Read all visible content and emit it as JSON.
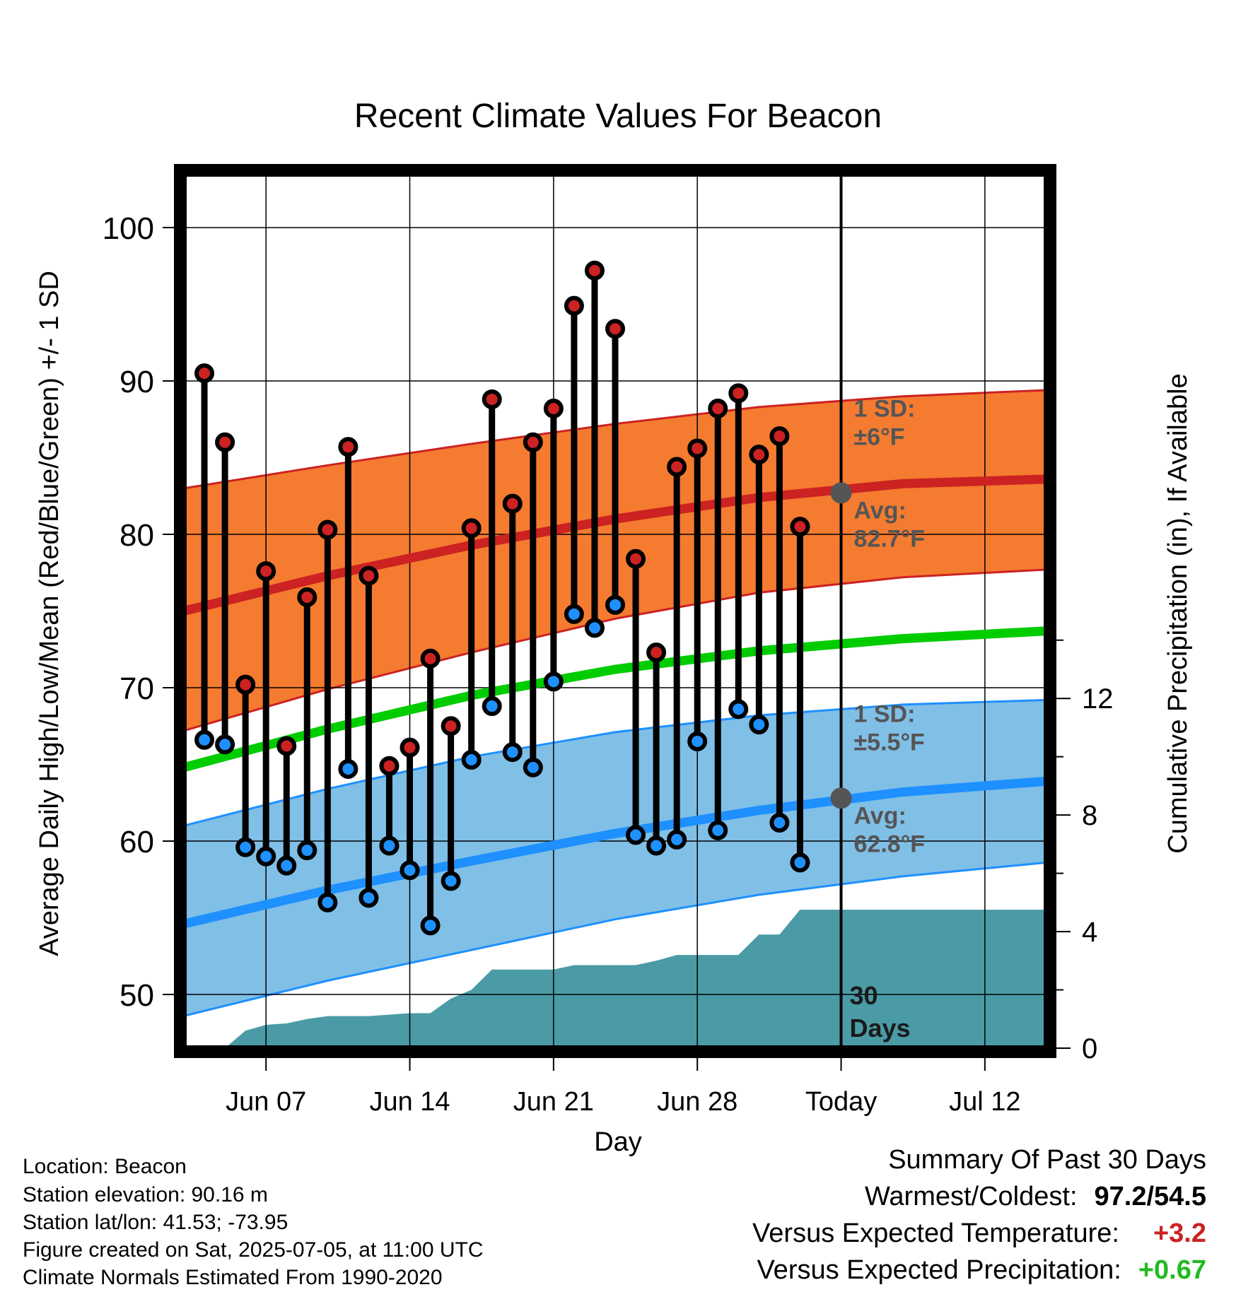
{
  "chart_data": {
    "type": "line",
    "title": "Recent Climate Values For Beacon",
    "xlabel": "Day",
    "ylabel": "Average Daily High/Low/Mean (Red/Blue/Green) +/- 1 SD",
    "y2label": "Cumulative Precipitation (in), If Available",
    "xlim": [
      "2025-06-03",
      "2025-07-15"
    ],
    "ylim": [
      46.5,
      103.5
    ],
    "y2lim": [
      0,
      30
    ],
    "x_ticks": [
      {
        "date": "2025-06-07",
        "label": "Jun 07"
      },
      {
        "date": "2025-06-14",
        "label": "Jun 14"
      },
      {
        "date": "2025-06-21",
        "label": "Jun 21"
      },
      {
        "date": "2025-06-28",
        "label": "Jun 28"
      },
      {
        "date": "2025-07-05",
        "label": "Today"
      },
      {
        "date": "2025-07-12",
        "label": "Jul 12"
      }
    ],
    "y_ticks": [
      50,
      60,
      70,
      80,
      90,
      100
    ],
    "y2_ticks": [
      0,
      4,
      8,
      12
    ],
    "grid": true,
    "today_marker": {
      "date": "2025-07-05",
      "label_line1": "30",
      "label_line2": "Days"
    },
    "normals": {
      "dates": [
        "2025-06-03",
        "2025-06-10",
        "2025-06-17",
        "2025-06-24",
        "2025-07-01",
        "2025-07-08",
        "2025-07-15"
      ],
      "avg_high": [
        75.0,
        77.3,
        79.3,
        81.0,
        82.4,
        83.3,
        83.6
      ],
      "high_sd_upper": [
        83.0,
        84.5,
        85.9,
        87.2,
        88.3,
        89.0,
        89.4
      ],
      "high_sd_lower": [
        67.2,
        69.9,
        72.3,
        74.5,
        76.2,
        77.2,
        77.7
      ],
      "avg_mean": [
        64.8,
        67.3,
        69.5,
        71.2,
        72.4,
        73.2,
        73.7
      ],
      "avg_low": [
        54.6,
        56.8,
        58.7,
        60.5,
        62.0,
        63.2,
        63.9
      ],
      "low_sd_upper": [
        61.0,
        63.4,
        65.5,
        67.1,
        68.2,
        68.9,
        69.2
      ],
      "low_sd_lower": [
        48.6,
        50.9,
        52.9,
        54.9,
        56.5,
        57.7,
        58.6
      ]
    },
    "high_annotation": {
      "sd_label": "1 SD:",
      "sd_value": "±6°F",
      "avg_label": "Avg:",
      "avg_value": "82.7°F",
      "avg": 82.7
    },
    "low_annotation": {
      "sd_label": "1 SD:",
      "sd_value": "±5.5°F",
      "avg_label": "Avg:",
      "avg_value": "62.8°F",
      "avg": 62.8
    },
    "series": [
      {
        "name": "High",
        "color": "#cc2222",
        "values": [
          90.5,
          86.0,
          70.2,
          77.6,
          66.2,
          75.9,
          80.3,
          85.7,
          77.3,
          64.9,
          66.1,
          71.9,
          67.5,
          80.4,
          88.8,
          82.0,
          86.0,
          88.2,
          94.9,
          97.2,
          93.4,
          78.4,
          72.3,
          84.4,
          85.6,
          88.2,
          89.2,
          85.2,
          86.4,
          80.5
        ]
      },
      {
        "name": "Low",
        "color": "#1e90ff",
        "values": [
          66.6,
          66.3,
          59.6,
          59.0,
          58.4,
          59.4,
          56.0,
          64.7,
          56.3,
          59.7,
          58.1,
          54.5,
          57.4,
          65.3,
          68.8,
          65.8,
          64.8,
          70.4,
          74.8,
          73.9,
          75.4,
          60.4,
          59.7,
          60.1,
          66.5,
          60.7,
          68.6,
          67.6,
          61.2,
          58.6
        ]
      }
    ],
    "days": [
      "2025-06-04",
      "2025-06-05",
      "2025-06-06",
      "2025-06-07",
      "2025-06-08",
      "2025-06-09",
      "2025-06-10",
      "2025-06-11",
      "2025-06-12",
      "2025-06-13",
      "2025-06-14",
      "2025-06-15",
      "2025-06-16",
      "2025-06-17",
      "2025-06-18",
      "2025-06-19",
      "2025-06-20",
      "2025-06-21",
      "2025-06-22",
      "2025-06-23",
      "2025-06-24",
      "2025-06-25",
      "2025-06-26",
      "2025-06-27",
      "2025-06-28",
      "2025-06-29",
      "2025-06-30",
      "2025-07-01",
      "2025-07-02",
      "2025-07-03"
    ],
    "precip_cumulative": {
      "dates": [
        "2025-06-03",
        "2025-06-04",
        "2025-06-05",
        "2025-06-06",
        "2025-06-07",
        "2025-06-08",
        "2025-06-09",
        "2025-06-10",
        "2025-06-11",
        "2025-06-12",
        "2025-06-13",
        "2025-06-14",
        "2025-06-15",
        "2025-06-16",
        "2025-06-17",
        "2025-06-18",
        "2025-06-19",
        "2025-06-20",
        "2025-06-21",
        "2025-06-22",
        "2025-06-23",
        "2025-06-24",
        "2025-06-25",
        "2025-06-26",
        "2025-06-27",
        "2025-06-28",
        "2025-06-29",
        "2025-06-30",
        "2025-07-01",
        "2025-07-02",
        "2025-07-03",
        "2025-07-04",
        "2025-07-05",
        "2025-07-15"
      ],
      "values": [
        0.0,
        0.0,
        0.0,
        0.6,
        0.8,
        0.85,
        1.0,
        1.1,
        1.1,
        1.1,
        1.15,
        1.2,
        1.2,
        1.7,
        2.0,
        2.7,
        2.7,
        2.7,
        2.7,
        2.85,
        2.85,
        2.85,
        2.85,
        3.0,
        3.2,
        3.2,
        3.2,
        3.2,
        3.9,
        3.9,
        4.75,
        4.75,
        4.75,
        4.75
      ]
    }
  },
  "info": {
    "location": "Location: Beacon",
    "elevation": "Station elevation: 90.16 m",
    "latlon": "Station lat/lon: 41.53; -73.95",
    "created": "Figure created on Sat, 2025-07-05, at 11:00 UTC",
    "normals_period": "Climate Normals Estimated From 1990-2020"
  },
  "summary": {
    "title": "Summary Of Past 30 Days",
    "warmest_label": "Warmest/Coldest:",
    "warmest_value": "97.2/54.5",
    "temp_label": "Versus Expected Temperature:",
    "temp_value": "+3.2",
    "precip_label": "Versus Expected Precipitation:",
    "precip_value": "+0.67"
  },
  "colors": {
    "high_band": "#f47b30",
    "high_line": "#cc2222",
    "mean_line": "#00cc00",
    "low_band": "#80bfe6",
    "low_line": "#1e90ff",
    "precip": "#4a9ba6",
    "annotation": "#555555",
    "temp_delta": "#cc2222",
    "precip_delta": "#22bb22"
  }
}
